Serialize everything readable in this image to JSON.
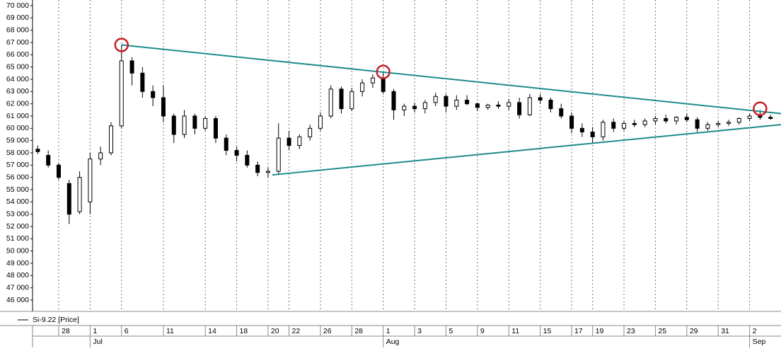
{
  "chart_data": {
    "type": "candlestick",
    "legend_label": "Si-9.22 [Price]",
    "categories": [
      null,
      null,
      "28",
      null,
      null,
      "1",
      null,
      null,
      "6",
      null,
      null,
      null,
      "11",
      null,
      null,
      null,
      "14",
      null,
      null,
      "18",
      null,
      null,
      "20",
      null,
      "22",
      null,
      null,
      "26",
      null,
      null,
      "28",
      null,
      null,
      "1",
      null,
      null,
      "3",
      null,
      null,
      "5",
      null,
      null,
      "9",
      null,
      null,
      "11",
      null,
      null,
      "15",
      null,
      null,
      "17",
      null,
      "19",
      null,
      null,
      "23",
      null,
      null,
      "25",
      null,
      null,
      "29",
      null,
      null,
      "31",
      null,
      null,
      "2",
      null,
      null
    ],
    "months": [
      null,
      null,
      null,
      null,
      null,
      "Jul",
      null,
      null,
      null,
      null,
      null,
      null,
      null,
      null,
      null,
      null,
      null,
      null,
      null,
      null,
      null,
      null,
      null,
      null,
      null,
      null,
      null,
      null,
      null,
      null,
      null,
      null,
      null,
      "Aug",
      null,
      null,
      null,
      null,
      null,
      null,
      null,
      null,
      null,
      null,
      null,
      null,
      null,
      null,
      null,
      null,
      null,
      null,
      null,
      null,
      null,
      null,
      null,
      null,
      null,
      null,
      null,
      null,
      null,
      null,
      null,
      null,
      null,
      null,
      "Sep",
      null,
      null
    ],
    "open": [
      58300,
      57800,
      57000,
      55500,
      53200,
      54000,
      57500,
      58000,
      60200,
      65500,
      64500,
      63000,
      62500,
      61000,
      59500,
      61000,
      60000,
      60800,
      59200,
      58200,
      57800,
      57000,
      56400,
      56500,
      59200,
      58600,
      59300,
      60000,
      61000,
      63200,
      61600,
      63000,
      63700,
      64100,
      63000,
      61500,
      61800,
      61600,
      62100,
      62600,
      61800,
      62300,
      62000,
      61700,
      61900,
      61800,
      62100,
      61100,
      62500,
      62300,
      61600,
      61000,
      60000,
      59700,
      59300,
      60500,
      60000,
      60400,
      60300,
      60600,
      60800,
      60600,
      60900,
      60700,
      60000,
      60300,
      60400,
      60500,
      60800,
      61000,
      60900
    ],
    "high": [
      58600,
      58200,
      57200,
      55800,
      56500,
      58000,
      58500,
      60500,
      66800,
      65800,
      65000,
      63500,
      63500,
      61200,
      61500,
      61200,
      61000,
      61000,
      59500,
      58500,
      58200,
      57300,
      56800,
      60400,
      59800,
      59500,
      60300,
      61300,
      63500,
      63400,
      63300,
      64000,
      64400,
      64600,
      63200,
      62000,
      62100,
      62300,
      62900,
      62800,
      62700,
      62700,
      62100,
      62000,
      62200,
      62400,
      62500,
      62800,
      62800,
      62500,
      62000,
      61300,
      60400,
      60100,
      60700,
      60800,
      60600,
      60700,
      60800,
      61000,
      61100,
      61000,
      61200,
      60900,
      60500,
      60600,
      60700,
      60900,
      61200,
      61500,
      61100
    ],
    "low": [
      57900,
      56800,
      55800,
      52200,
      53000,
      53000,
      57000,
      57800,
      60000,
      63500,
      62500,
      61800,
      60500,
      58800,
      59200,
      59500,
      59800,
      58800,
      57800,
      57300,
      56800,
      56100,
      56000,
      56200,
      58200,
      58300,
      59000,
      59800,
      60800,
      61200,
      61400,
      62600,
      63300,
      62800,
      60700,
      61000,
      61300,
      61200,
      61800,
      61300,
      61500,
      61900,
      61400,
      61500,
      61600,
      61500,
      60800,
      61000,
      62000,
      61300,
      60800,
      59600,
      59300,
      58800,
      59000,
      59700,
      59800,
      60100,
      60100,
      60300,
      60400,
      60300,
      60500,
      59700,
      59800,
      60100,
      60200,
      60300,
      60600,
      60700,
      60700
    ],
    "close": [
      58100,
      57000,
      56000,
      53000,
      56000,
      57500,
      58000,
      60200,
      65500,
      64500,
      63000,
      62500,
      61000,
      59500,
      61000,
      60000,
      60800,
      59200,
      58200,
      57800,
      57000,
      56400,
      56500,
      59200,
      58600,
      59300,
      60000,
      61000,
      63200,
      61600,
      63000,
      63700,
      64100,
      63000,
      61500,
      61800,
      61600,
      62100,
      62600,
      61800,
      62300,
      62000,
      61700,
      61900,
      61800,
      62100,
      61100,
      62500,
      62300,
      61600,
      61000,
      60000,
      59700,
      59300,
      60500,
      60000,
      60400,
      60300,
      60600,
      60800,
      60600,
      60900,
      60700,
      60000,
      60300,
      60400,
      60500,
      60800,
      61000,
      60900,
      60800
    ],
    "xlim": [
      -0.5,
      71
    ],
    "ylim": [
      45250,
      70460
    ],
    "yticks": [
      {
        "value": 46000,
        "label": "46 000"
      },
      {
        "value": 47000,
        "label": "47 000"
      },
      {
        "value": 48000,
        "label": "48 000"
      },
      {
        "value": 49000,
        "label": "49 000"
      },
      {
        "value": 50000,
        "label": "50 000"
      },
      {
        "value": 51000,
        "label": "51 000"
      },
      {
        "value": 52000,
        "label": "52 000"
      },
      {
        "value": 53000,
        "label": "53 000"
      },
      {
        "value": 54000,
        "label": "54 000"
      },
      {
        "value": 55000,
        "label": "55 000"
      },
      {
        "value": 56000,
        "label": "56 000"
      },
      {
        "value": 57000,
        "label": "57 000"
      },
      {
        "value": 58000,
        "label": "58 000"
      },
      {
        "value": 59000,
        "label": "59 000"
      },
      {
        "value": 60000,
        "label": "60 000"
      },
      {
        "value": 61000,
        "label": "61 000"
      },
      {
        "value": 62000,
        "label": "62 000"
      },
      {
        "value": 63000,
        "label": "63 000"
      },
      {
        "value": 64000,
        "label": "64 000"
      },
      {
        "value": 65000,
        "label": "65 000"
      },
      {
        "value": 66000,
        "label": "66 000"
      },
      {
        "value": 67000,
        "label": "67 000"
      },
      {
        "value": 68000,
        "label": "68 000"
      },
      {
        "value": 69000,
        "label": "69 000"
      },
      {
        "value": 70000,
        "label": "70 000"
      }
    ],
    "trendlines": [
      {
        "from": [
          8,
          66800
        ],
        "to": [
          71,
          61200
        ],
        "color": "#1f8c8c"
      },
      {
        "from": [
          22.4,
          56200
        ],
        "to": [
          71,
          60300
        ],
        "color": "#1f8c8c"
      }
    ],
    "markers": [
      [
        8,
        66800
      ],
      [
        33,
        64600
      ],
      [
        69,
        61600
      ]
    ],
    "marker_color": "#c8202a",
    "up_color": "#ffffff",
    "down_color": "#000000"
  }
}
